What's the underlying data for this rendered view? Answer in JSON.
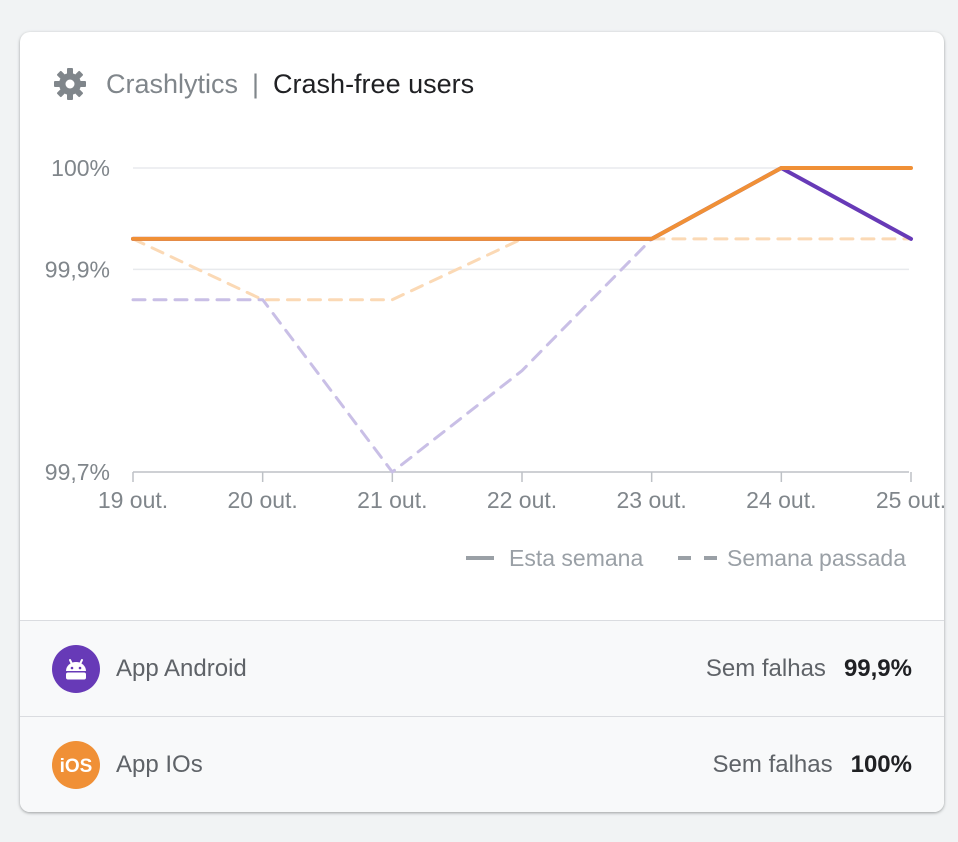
{
  "header": {
    "product": "Crashlytics",
    "separator": "|",
    "title": "Crash-free users",
    "icon": "gear-icon"
  },
  "chart_data": {
    "type": "line",
    "title": "Crash-free users",
    "xlabel": "",
    "ylabel": "",
    "categories": [
      "19 out.",
      "20 out.",
      "21 out.",
      "22 out.",
      "23 out.",
      "24 out.",
      "25 out."
    ],
    "y_ticks": [
      "100%",
      "99,9%",
      "99,7%"
    ],
    "ylim": [
      99.7,
      100
    ],
    "grid": true,
    "legend_position": "bottom-right",
    "legend": [
      {
        "label": "Esta semana",
        "style": "solid"
      },
      {
        "label": "Semana passada",
        "style": "dashed"
      }
    ],
    "series": [
      {
        "app": "App Android",
        "week": "this",
        "color": "#673ab7",
        "values": [
          99.93,
          99.93,
          99.93,
          99.93,
          99.93,
          100,
          99.93
        ]
      },
      {
        "app": "App IOs",
        "week": "this",
        "color": "#f09036",
        "values": [
          99.93,
          99.93,
          99.93,
          99.93,
          99.93,
          100,
          100
        ]
      },
      {
        "app": "App Android",
        "week": "last",
        "color": "#c9bfe6",
        "values": [
          99.87,
          99.87,
          99.7,
          99.8,
          99.93,
          null,
          null
        ]
      },
      {
        "app": "App IOs",
        "week": "last",
        "color": "#fbd9b5",
        "values": [
          99.93,
          99.87,
          99.87,
          99.93,
          99.93,
          99.93,
          99.93
        ]
      }
    ]
  },
  "apps": [
    {
      "name": "App Android",
      "stat_label": "Sem falhas",
      "stat_value": "99,9%",
      "icon": "android-icon",
      "color": "#673ab7"
    },
    {
      "name": "App IOs",
      "stat_label": "Sem falhas",
      "stat_value": "100%",
      "icon": "ios-icon",
      "color": "#f09036"
    }
  ]
}
